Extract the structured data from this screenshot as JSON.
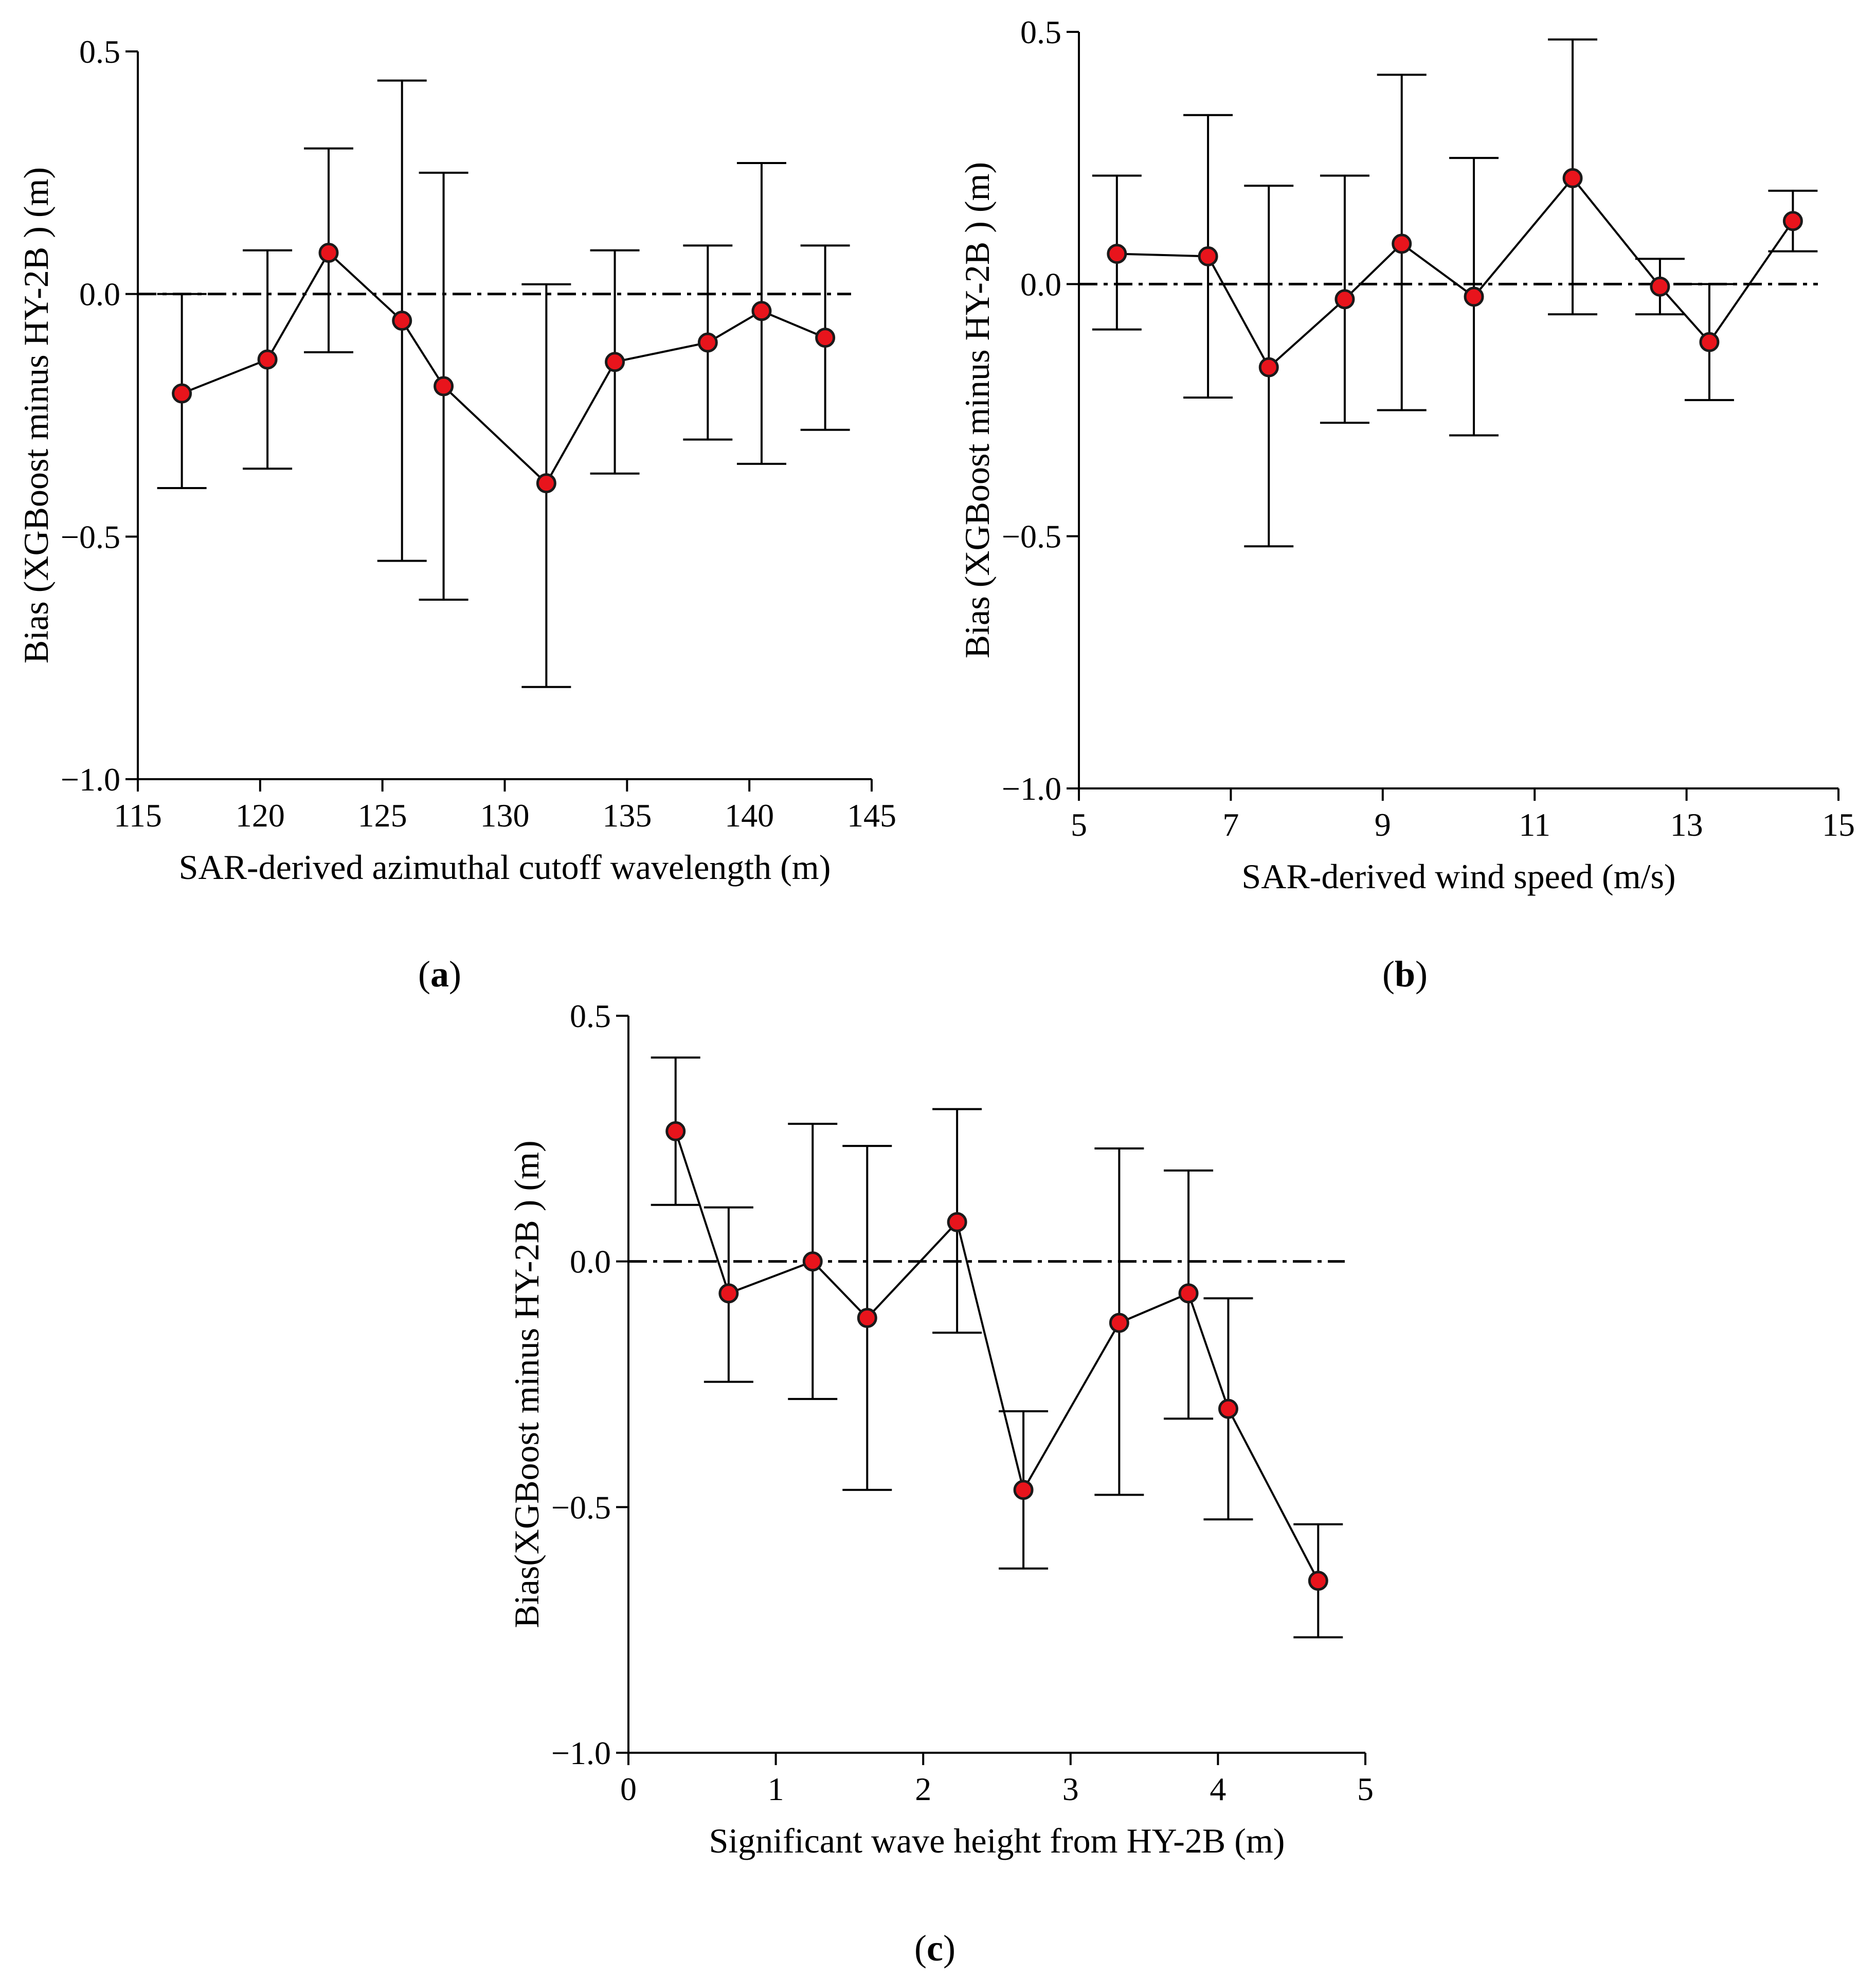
{
  "chart_data": [
    {
      "type": "line",
      "panel": "a",
      "panel_label": "a",
      "xlabel": "SAR-derived azimuthal cutoff wavelength (m)",
      "ylabel": "Bias (XGBoost minus HY-2B ) (m)",
      "xlim": [
        115,
        145
      ],
      "ylim": [
        -1.0,
        0.5
      ],
      "xticks": [
        115,
        120,
        125,
        130,
        135,
        140,
        145
      ],
      "yticks": [
        0.5,
        0.0,
        -0.5,
        -1.0
      ],
      "xtick_labels": [
        "115",
        "120",
        "125",
        "130",
        "135",
        "140",
        "145"
      ],
      "ytick_labels": [
        "0.5",
        "0.0",
        "−0.5",
        "−1.0"
      ],
      "reference_line": 0.0,
      "series": [
        {
          "name": "bias",
          "x": [
            116.8,
            120.3,
            122.8,
            125.8,
            127.5,
            131.7,
            134.5,
            138.3,
            140.5,
            143.1
          ],
          "y": [
            -0.205,
            -0.135,
            0.085,
            -0.055,
            -0.19,
            -0.39,
            -0.14,
            -0.1,
            -0.035,
            -0.09
          ],
          "err_low": [
            -0.4,
            -0.36,
            -0.12,
            -0.55,
            -0.63,
            -0.81,
            -0.37,
            -0.3,
            -0.35,
            -0.28
          ],
          "err_high": [
            0.0,
            0.09,
            0.3,
            0.44,
            0.25,
            0.02,
            0.09,
            0.1,
            0.27,
            0.1
          ]
        }
      ]
    },
    {
      "type": "line",
      "panel": "b",
      "panel_label": "b",
      "xlabel": "SAR-derived wind speed (m/s)",
      "ylabel": "Bias (XGBoost minus HY-2B ) (m)",
      "xlim": [
        5,
        15
      ],
      "ylim": [
        -1.0,
        0.5
      ],
      "xticks": [
        5,
        7,
        9,
        11,
        13,
        15
      ],
      "yticks": [
        0.5,
        0.0,
        -0.5,
        -1.0
      ],
      "xtick_labels": [
        "5",
        "7",
        "9",
        "11",
        "13",
        "15"
      ],
      "ytick_labels": [
        "0.5",
        "0.0",
        "−0.5",
        "−1.0"
      ],
      "reference_line": 0.0,
      "series": [
        {
          "name": "bias",
          "x": [
            5.5,
            6.7,
            7.5,
            8.5,
            9.25,
            10.2,
            11.5,
            12.65,
            13.3,
            14.4
          ],
          "y": [
            0.06,
            0.055,
            -0.165,
            -0.03,
            0.08,
            -0.025,
            0.21,
            -0.005,
            -0.115,
            0.125
          ],
          "err_low": [
            -0.09,
            -0.225,
            -0.52,
            -0.275,
            -0.25,
            -0.3,
            -0.06,
            -0.06,
            -0.23,
            0.065
          ],
          "err_high": [
            0.215,
            0.335,
            0.195,
            0.215,
            0.415,
            0.25,
            0.485,
            0.05,
            0.0,
            0.185
          ]
        }
      ]
    },
    {
      "type": "line",
      "panel": "c",
      "panel_label": "c",
      "xlabel": "Significant wave height from HY-2B (m)",
      "ylabel": "Bias(XGBoost minus HY-2B ) (m)",
      "xlim": [
        0,
        5
      ],
      "ylim": [
        -1.0,
        0.5
      ],
      "xticks": [
        0,
        1,
        2,
        3,
        4,
        5
      ],
      "yticks": [
        0.5,
        0.0,
        -0.5,
        -1.0
      ],
      "xtick_labels": [
        "0",
        "1",
        "2",
        "3",
        "4",
        "5"
      ],
      "ytick_labels": [
        "0.5",
        "0.0",
        "−0.5",
        "−1.0"
      ],
      "reference_line": 0.0,
      "series": [
        {
          "name": "bias",
          "x": [
            0.32,
            0.68,
            1.25,
            1.62,
            2.23,
            2.68,
            3.33,
            3.8,
            4.07,
            4.68
          ],
          "y": [
            0.265,
            -0.065,
            0.0,
            -0.115,
            0.08,
            -0.465,
            -0.125,
            -0.065,
            -0.3,
            -0.65
          ],
          "err_low": [
            0.115,
            -0.245,
            -0.28,
            -0.465,
            -0.145,
            -0.625,
            -0.475,
            -0.32,
            -0.525,
            -0.765
          ],
          "err_high": [
            0.415,
            0.11,
            0.28,
            0.235,
            0.31,
            -0.305,
            0.23,
            0.185,
            -0.075,
            -0.535
          ]
        }
      ]
    }
  ],
  "colors": {
    "marker_fill": "#e8141c",
    "marker_stroke": "#1a1a1a",
    "line": "#000000"
  }
}
